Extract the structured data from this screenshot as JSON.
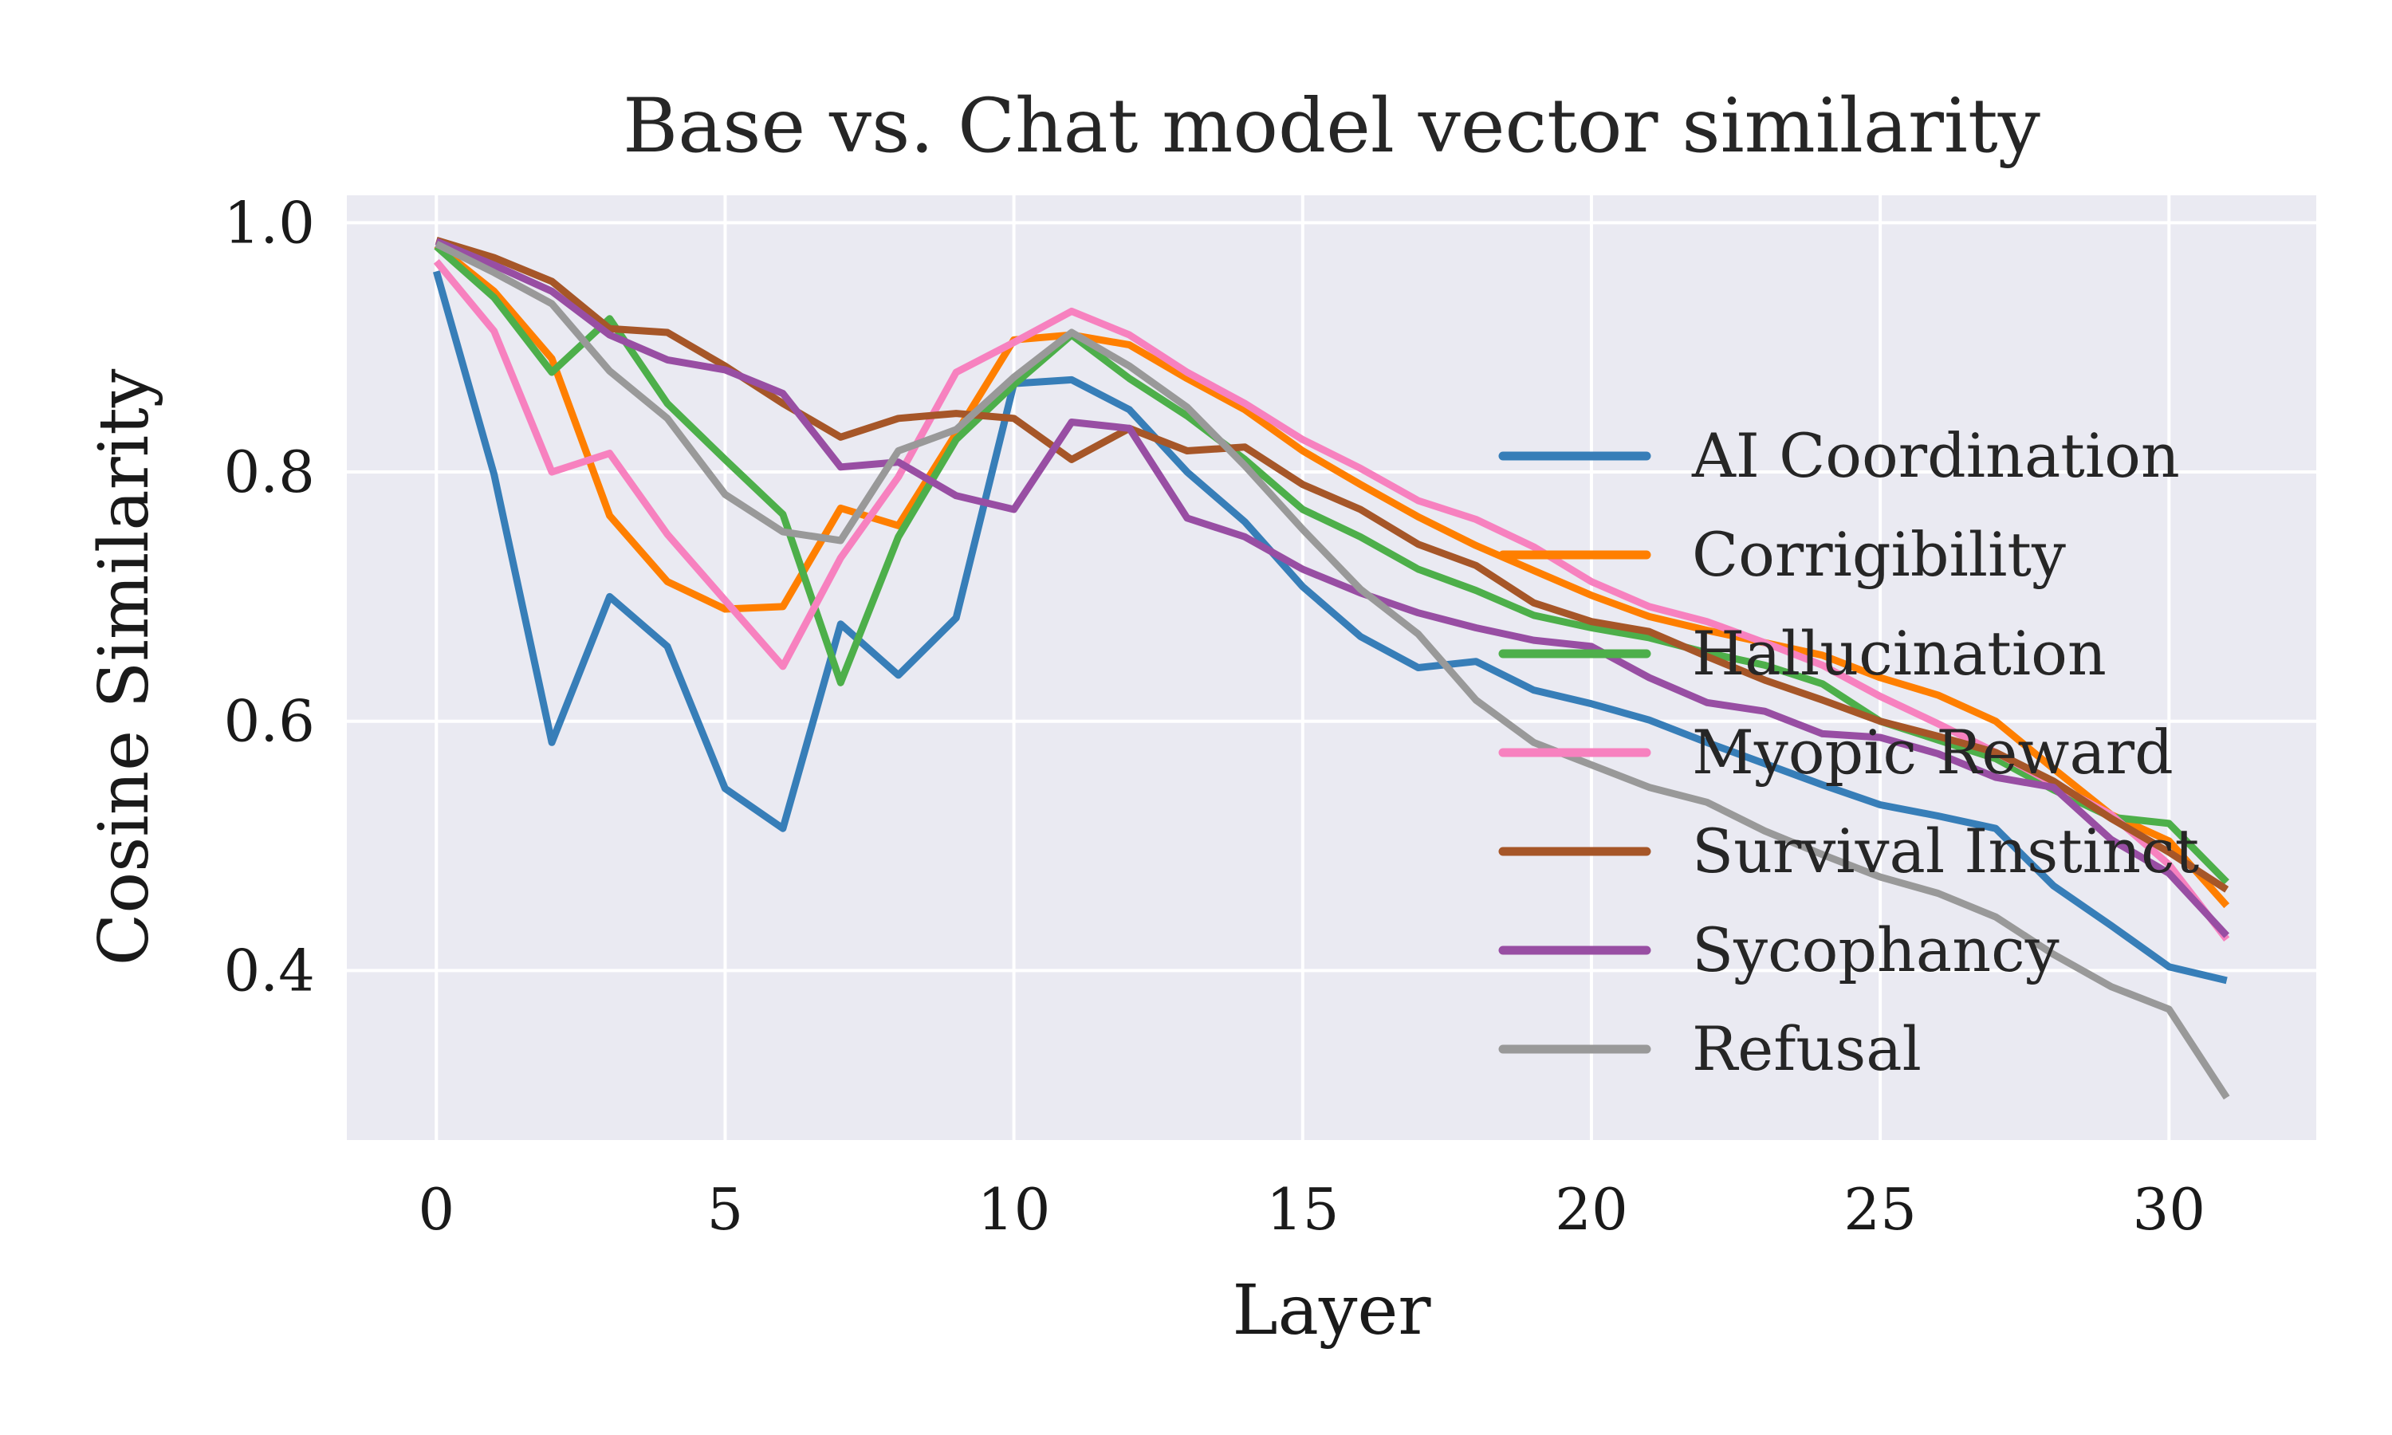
{
  "chart_data": {
    "type": "line",
    "title": "Base vs. Chat model vector similarity",
    "xlabel": "Layer",
    "ylabel": "Cosine Similarity",
    "xlim": [
      -1.55,
      32.55
    ],
    "ylim": [
      0.264,
      1.022
    ],
    "xticks": [
      0,
      5,
      10,
      15,
      20,
      25,
      30
    ],
    "xtick_labels": [
      "0",
      "5",
      "10",
      "15",
      "20",
      "25",
      "30"
    ],
    "yticks": [
      0.4,
      0.6,
      0.8,
      1.0
    ],
    "ytick_labels": [
      "0.4",
      "0.6",
      "0.8",
      "1.0"
    ],
    "grid": true,
    "legend_position": "center-right",
    "x": [
      0,
      1,
      2,
      3,
      4,
      5,
      6,
      7,
      8,
      9,
      10,
      11,
      12,
      13,
      14,
      15,
      16,
      17,
      18,
      19,
      20,
      21,
      22,
      23,
      24,
      25,
      26,
      27,
      28,
      29,
      30,
      31
    ],
    "series": [
      {
        "name": "AI Coordination",
        "color": "#377eb8",
        "values": [
          0.961,
          0.798,
          0.583,
          0.7,
          0.66,
          0.546,
          0.514,
          0.678,
          0.637,
          0.683,
          0.871,
          0.874,
          0.85,
          0.8,
          0.76,
          0.708,
          0.668,
          0.643,
          0.648,
          0.625,
          0.614,
          0.601,
          0.583,
          0.566,
          0.549,
          0.533,
          0.524,
          0.514,
          0.468,
          0.436,
          0.403,
          0.392
        ]
      },
      {
        "name": "Corrigibility",
        "color": "#ff7f00",
        "values": [
          0.982,
          0.945,
          0.891,
          0.765,
          0.712,
          0.69,
          0.692,
          0.771,
          0.757,
          0.831,
          0.906,
          0.91,
          0.902,
          0.875,
          0.85,
          0.817,
          0.79,
          0.764,
          0.741,
          0.721,
          0.701,
          0.684,
          0.673,
          0.663,
          0.653,
          0.635,
          0.621,
          0.6,
          0.562,
          0.525,
          0.504,
          0.452
        ]
      },
      {
        "name": "Hallucination",
        "color": "#4daf4a",
        "values": [
          0.981,
          0.94,
          0.88,
          0.923,
          0.855,
          0.81,
          0.766,
          0.631,
          0.748,
          0.826,
          0.87,
          0.91,
          0.875,
          0.845,
          0.81,
          0.77,
          0.748,
          0.722,
          0.705,
          0.685,
          0.675,
          0.667,
          0.655,
          0.645,
          0.63,
          0.6,
          0.585,
          0.57,
          0.545,
          0.523,
          0.518,
          0.471
        ]
      },
      {
        "name": "Myopic Reward",
        "color": "#f781bf",
        "values": [
          0.969,
          0.913,
          0.8,
          0.815,
          0.75,
          0.697,
          0.644,
          0.731,
          0.796,
          0.88,
          0.904,
          0.929,
          0.91,
          0.88,
          0.855,
          0.826,
          0.803,
          0.777,
          0.762,
          0.74,
          0.712,
          0.692,
          0.68,
          0.663,
          0.645,
          0.62,
          0.598,
          0.575,
          0.55,
          0.525,
          0.485,
          0.425
        ]
      },
      {
        "name": "Survival Instinct",
        "color": "#a65628",
        "values": [
          0.986,
          0.972,
          0.953,
          0.915,
          0.912,
          0.885,
          0.855,
          0.828,
          0.843,
          0.847,
          0.843,
          0.81,
          0.835,
          0.817,
          0.82,
          0.79,
          0.77,
          0.742,
          0.725,
          0.695,
          0.68,
          0.672,
          0.652,
          0.633,
          0.617,
          0.6,
          0.588,
          0.575,
          0.552,
          0.522,
          0.495,
          0.465
        ]
      },
      {
        "name": "Sycophancy",
        "color": "#984ea3",
        "values": [
          0.985,
          0.966,
          0.945,
          0.91,
          0.89,
          0.882,
          0.863,
          0.804,
          0.808,
          0.781,
          0.77,
          0.84,
          0.835,
          0.763,
          0.748,
          0.722,
          0.703,
          0.687,
          0.675,
          0.665,
          0.66,
          0.635,
          0.615,
          0.608,
          0.59,
          0.587,
          0.574,
          0.555,
          0.547,
          0.505,
          0.478,
          0.428
        ]
      },
      {
        "name": "Refusal",
        "color": "#999999",
        "values": [
          0.983,
          0.96,
          0.935,
          0.881,
          0.843,
          0.782,
          0.752,
          0.745,
          0.817,
          0.834,
          0.876,
          0.912,
          0.885,
          0.852,
          0.805,
          0.754,
          0.706,
          0.67,
          0.617,
          0.583,
          0.565,
          0.547,
          0.535,
          0.512,
          0.493,
          0.475,
          0.462,
          0.443,
          0.413,
          0.387,
          0.369,
          0.298
        ]
      }
    ]
  }
}
